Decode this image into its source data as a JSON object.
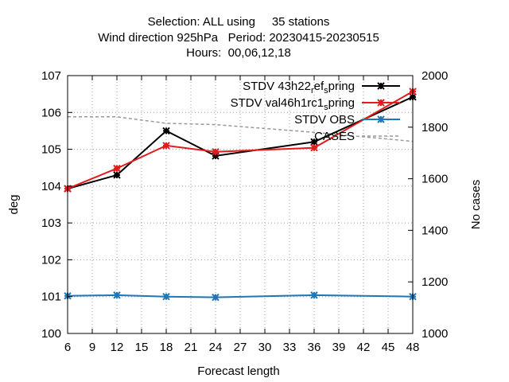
{
  "chart_data": {
    "type": "line",
    "title_lines": [
      "Selection: ALL using     35 stations",
      "Wind direction 925hPa   Period: 20230415-20230515",
      "Hours:  00,06,12,18"
    ],
    "xlabel": "Forecast length",
    "ylabel": "deg",
    "y2label": "No cases",
    "xlim": [
      6,
      48
    ],
    "xticks": [
      6,
      9,
      12,
      15,
      18,
      21,
      24,
      27,
      30,
      33,
      36,
      39,
      42,
      45,
      48
    ],
    "ylim": [
      100,
      107
    ],
    "yticks": [
      100,
      101,
      102,
      103,
      104,
      105,
      106,
      107
    ],
    "y2lim": [
      1000,
      2000
    ],
    "y2ticks": [
      1000,
      1200,
      1400,
      1600,
      1800,
      2000
    ],
    "grid": true,
    "legend_position": "top-right",
    "series": [
      {
        "name": "STDV 43h22_ref_spring",
        "name_parts": [
          {
            "text": "STDV 43h22",
            "shift": "base"
          },
          {
            "text": "r",
            "shift": "sub"
          },
          {
            "text": "ef",
            "shift": "base"
          },
          {
            "text": "s",
            "shift": "sub"
          },
          {
            "text": "pring",
            "shift": "base"
          }
        ],
        "color": "#000000",
        "marker": "star",
        "axis": "y",
        "x": [
          6,
          12,
          18,
          24,
          36,
          48
        ],
        "y": [
          103.93,
          104.3,
          105.5,
          104.82,
          105.2,
          106.42
        ]
      },
      {
        "name": "STDV val46h1rc1_spring",
        "name_parts": [
          {
            "text": "STDV val46h1rc1",
            "shift": "base"
          },
          {
            "text": "s",
            "shift": "sub"
          },
          {
            "text": "pring",
            "shift": "base"
          }
        ],
        "color": "#e41a1c",
        "marker": "star",
        "axis": "y",
        "x": [
          6,
          12,
          18,
          24,
          36,
          48
        ],
        "y": [
          103.93,
          104.48,
          105.1,
          104.93,
          105.04,
          106.57
        ]
      },
      {
        "name": "STDV OBS",
        "name_parts": [
          {
            "text": "STDV OBS",
            "shift": "base"
          }
        ],
        "color": "#1f77b4",
        "marker": "star",
        "axis": "y",
        "x": [
          6,
          12,
          18,
          24,
          36,
          48
        ],
        "y": [
          101.02,
          101.04,
          101.0,
          100.98,
          101.04,
          101.0
        ]
      },
      {
        "name": "CASES",
        "name_parts": [
          {
            "text": "CASES",
            "shift": "base"
          }
        ],
        "color": "#999999",
        "marker": "none",
        "dashed": true,
        "axis": "y2",
        "x": [
          6,
          12,
          18,
          24,
          36,
          48
        ],
        "y": [
          1840,
          1840,
          1815,
          1810,
          1780,
          1745
        ]
      }
    ]
  }
}
